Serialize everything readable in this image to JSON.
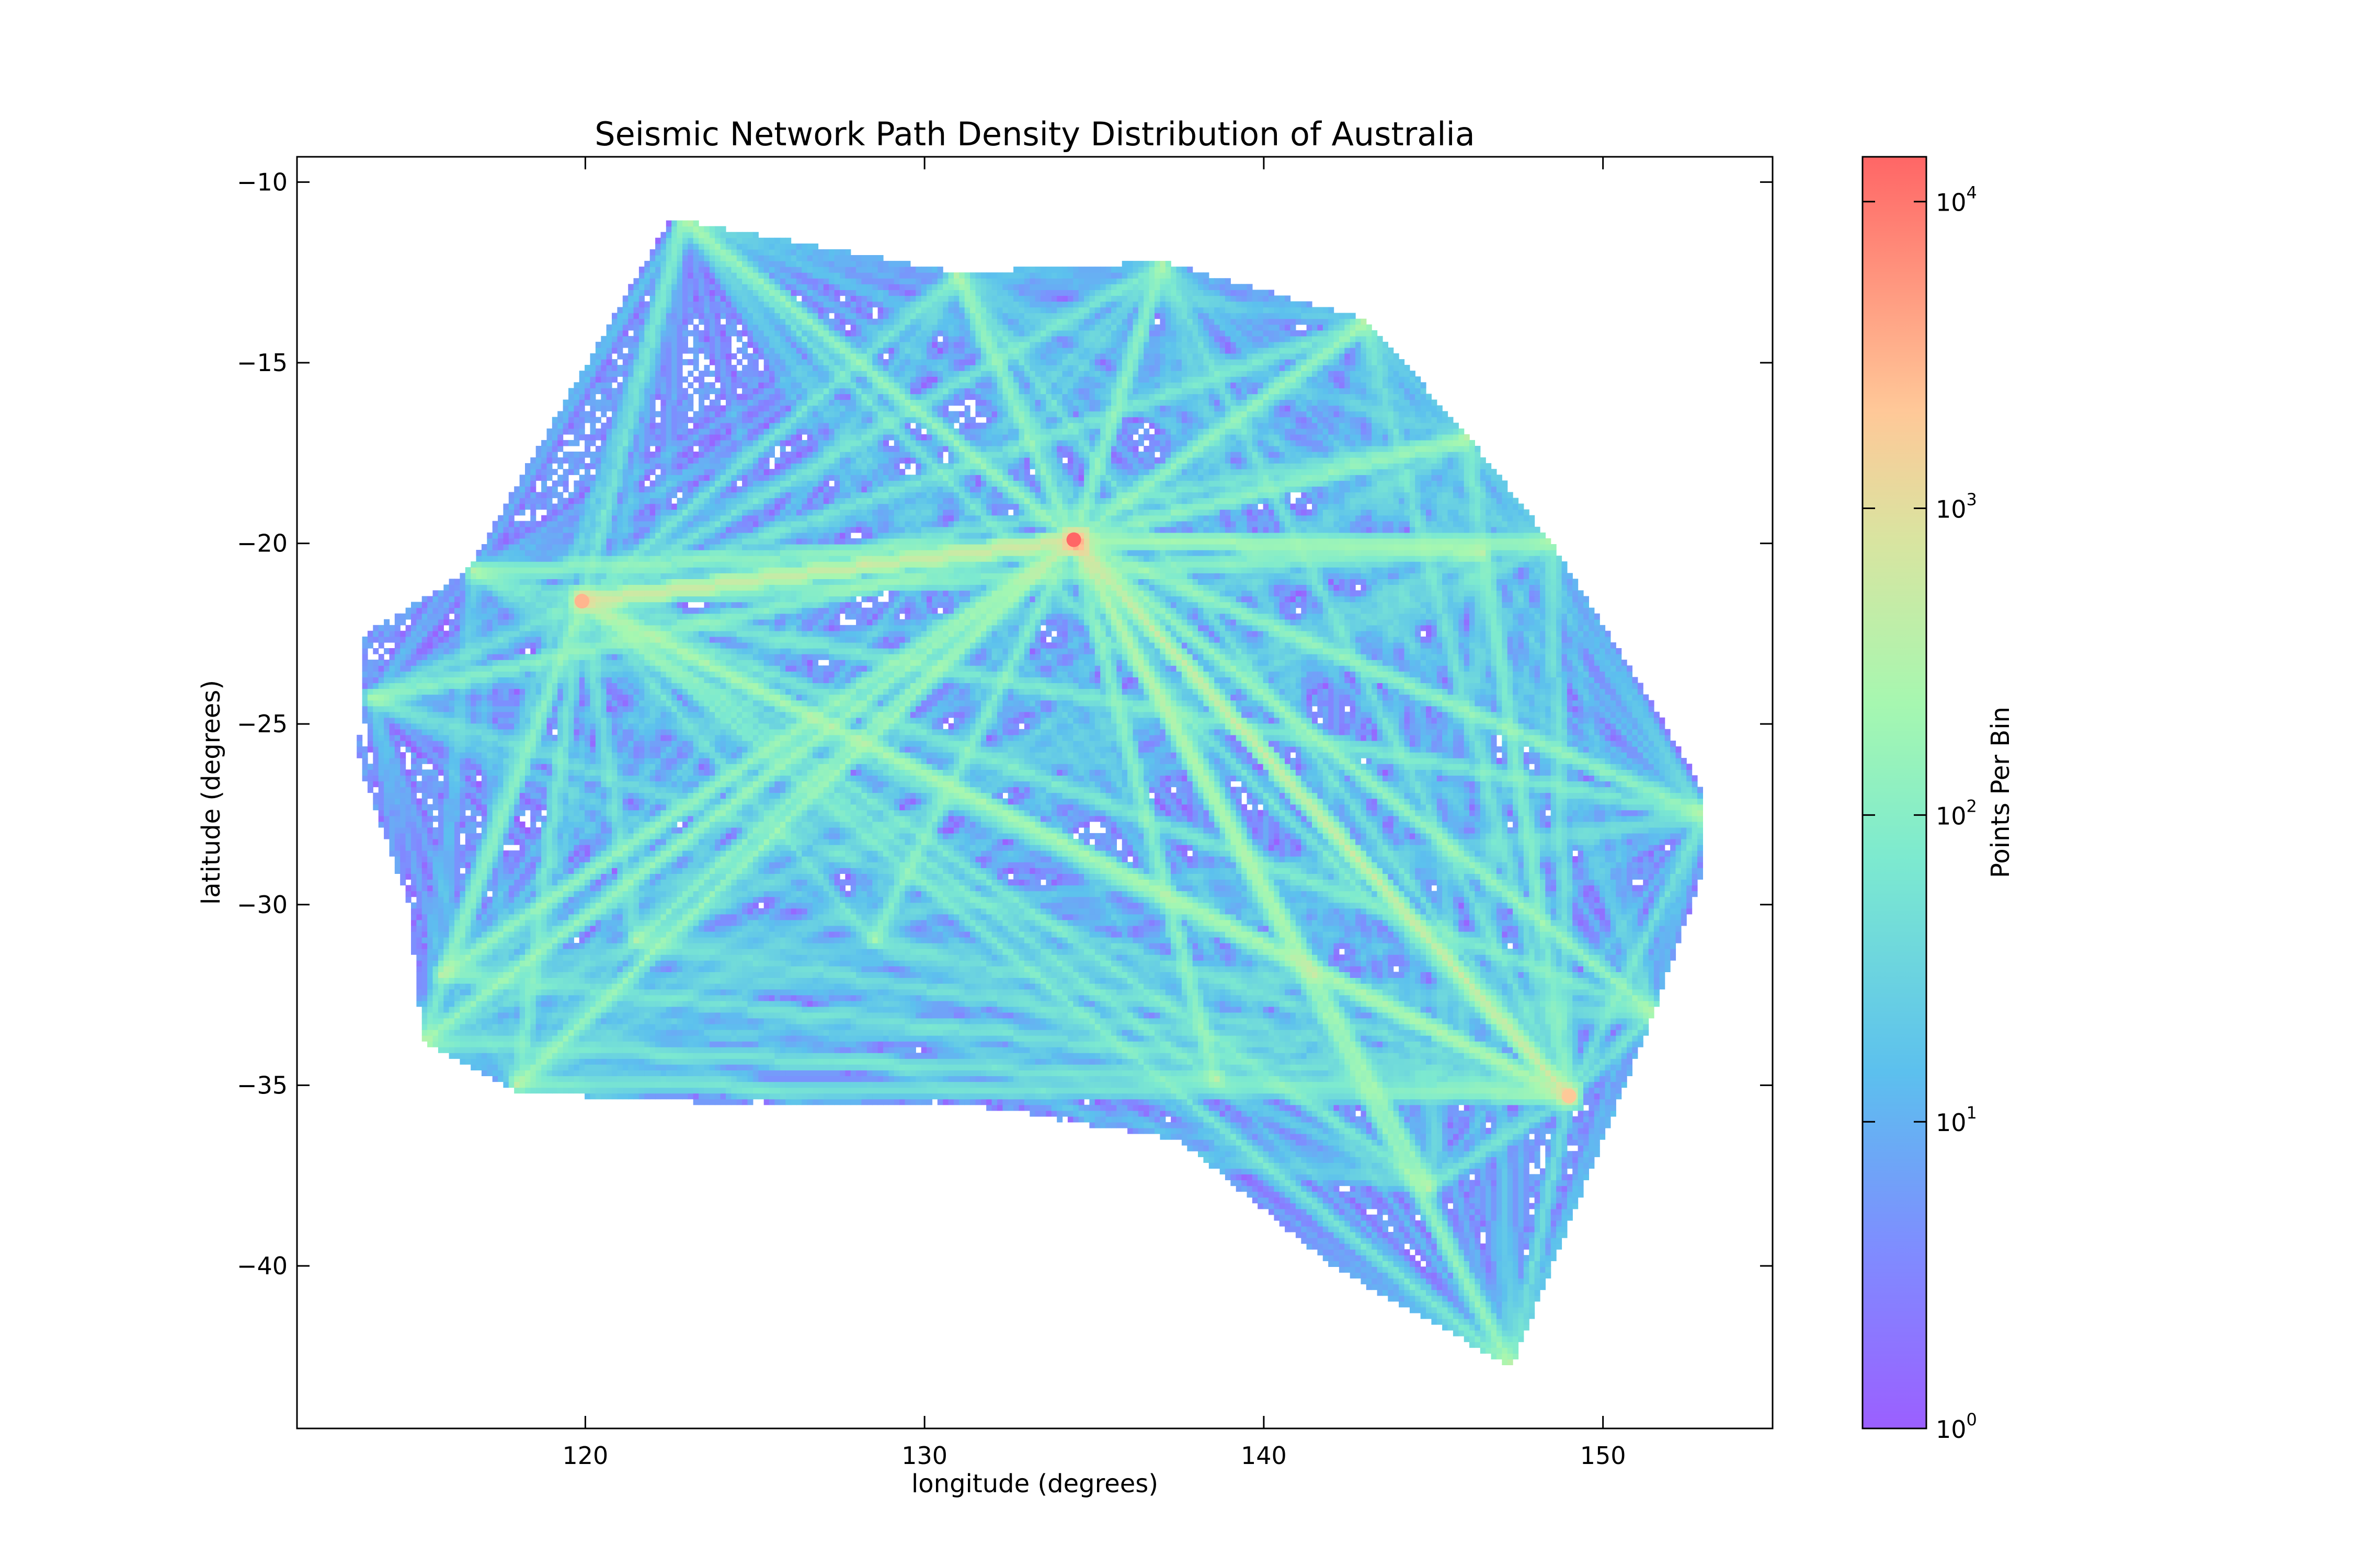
{
  "chart_data": {
    "type": "heatmap",
    "title": "Seismic Network Path Density Distribution of Australia",
    "xlabel": "longitude (degrees)",
    "ylabel": "latitude (degrees)",
    "xlim": [
      111.5,
      155
    ],
    "ylim": [
      -44.5,
      -9.3
    ],
    "x_ticks": [
      {
        "value": 120,
        "label": "120"
      },
      {
        "value": 130,
        "label": "130"
      },
      {
        "value": 140,
        "label": "140"
      },
      {
        "value": 150,
        "label": "150"
      }
    ],
    "y_ticks": [
      {
        "value": -10,
        "label": "−10"
      },
      {
        "value": -15,
        "label": "−15"
      },
      {
        "value": -20,
        "label": "−20"
      },
      {
        "value": -25,
        "label": "−25"
      },
      {
        "value": -30,
        "label": "−30"
      },
      {
        "value": -35,
        "label": "−35"
      },
      {
        "value": -40,
        "label": "−40"
      }
    ],
    "grid": false,
    "colormap": "rainbow",
    "color_scale": "log",
    "colorbar": {
      "label": "Points Per Bin",
      "range": [
        1,
        14000
      ],
      "ticks": [
        {
          "value": 1,
          "base": "10",
          "exp": "0"
        },
        {
          "value": 10,
          "base": "10",
          "exp": "1"
        },
        {
          "value": 100,
          "base": "10",
          "exp": "2"
        },
        {
          "value": 1000,
          "base": "10",
          "exp": "3"
        },
        {
          "value": 10000,
          "base": "10",
          "exp": "4"
        }
      ]
    },
    "outline": [
      [
        113.5,
        -22.5
      ],
      [
        116.5,
        -20.8
      ],
      [
        122.5,
        -11.0
      ],
      [
        131.0,
        -12.5
      ],
      [
        137.0,
        -12.2
      ],
      [
        143.0,
        -13.8
      ],
      [
        146.0,
        -17.0
      ],
      [
        148.5,
        -20.0
      ],
      [
        151.5,
        -24.5
      ],
      [
        153.0,
        -26.8
      ],
      [
        153.0,
        -29.0
      ],
      [
        151.5,
        -33.0
      ],
      [
        150.0,
        -36.5
      ],
      [
        147.3,
        -42.8
      ],
      [
        142.0,
        -40.0
      ],
      [
        137.5,
        -36.5
      ],
      [
        131.0,
        -35.5
      ],
      [
        124.0,
        -35.5
      ],
      [
        118.0,
        -35.2
      ],
      [
        115.2,
        -33.8
      ],
      [
        114.8,
        -30.0
      ],
      [
        113.3,
        -26.0
      ]
    ],
    "stations": [
      {
        "lon": 134.4,
        "lat": -19.9,
        "count": 14000
      },
      {
        "lon": 119.9,
        "lat": -21.6,
        "count": 3000
      },
      {
        "lon": 149.0,
        "lat": -35.3,
        "count": 2000
      },
      {
        "lon": 122.9,
        "lat": -11.0,
        "count": 150
      },
      {
        "lon": 131.0,
        "lat": -12.6,
        "count": 120
      },
      {
        "lon": 137.0,
        "lat": -12.3,
        "count": 120
      },
      {
        "lon": 143.0,
        "lat": -13.9,
        "count": 120
      },
      {
        "lon": 146.0,
        "lat": -17.1,
        "count": 120
      },
      {
        "lon": 148.5,
        "lat": -20.0,
        "count": 120
      },
      {
        "lon": 146.4,
        "lat": -20.2,
        "count": 120
      },
      {
        "lon": 153.0,
        "lat": -27.5,
        "count": 150
      },
      {
        "lon": 151.5,
        "lat": -33.0,
        "count": 150
      },
      {
        "lon": 147.3,
        "lat": -42.8,
        "count": 150
      },
      {
        "lon": 144.9,
        "lat": -37.8,
        "count": 150
      },
      {
        "lon": 138.6,
        "lat": -34.9,
        "count": 100
      },
      {
        "lon": 118.0,
        "lat": -35.0,
        "count": 150
      },
      {
        "lon": 115.8,
        "lat": -31.9,
        "count": 150
      },
      {
        "lon": 115.2,
        "lat": -33.8,
        "count": 150
      },
      {
        "lon": 116.7,
        "lat": -20.8,
        "count": 100
      },
      {
        "lon": 121.5,
        "lat": -31.0,
        "count": 80
      },
      {
        "lon": 113.7,
        "lat": -24.3,
        "count": 80
      },
      {
        "lon": 128.5,
        "lat": -31.0,
        "count": 60
      },
      {
        "lon": 141.5,
        "lat": -32.0,
        "count": 60
      }
    ]
  }
}
